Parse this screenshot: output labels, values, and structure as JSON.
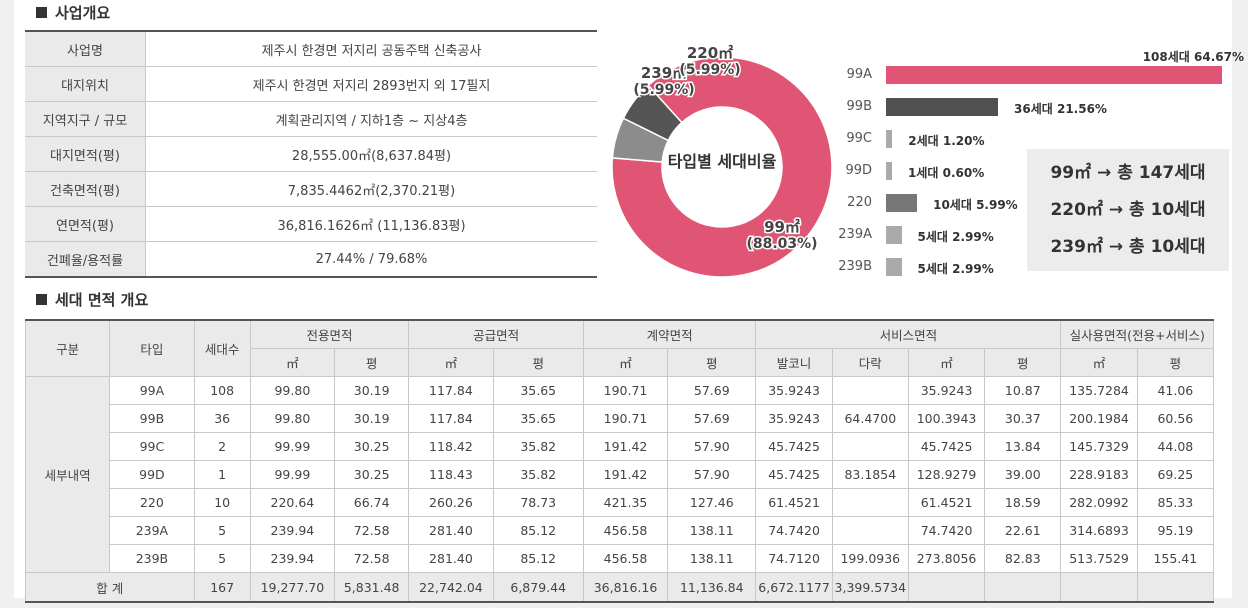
{
  "section1_title": "사업개요",
  "section2_title": "세대 면적 개요",
  "overview": [
    {
      "label": "사업명",
      "value": "제주시 한경면 저지리 공동주택 신축공사"
    },
    {
      "label": "대지위치",
      "value": "제주시 한경면 저지리 2893번지 외 17필지"
    },
    {
      "label": "지역지구 / 규모",
      "value": "계획관리지역 / 지하1층 ~ 지상4층"
    },
    {
      "label": "대지면적(평)",
      "value": "28,555.00㎡(8,637.84평)"
    },
    {
      "label": "건축면적(평)",
      "value": "7,835.4462㎡(2,370.21평)"
    },
    {
      "label": "연면적(평)",
      "value": "36,816.1626㎡ (11,136.83평)"
    },
    {
      "label": "건폐율/용적률",
      "value": "27.44% / 79.68%"
    }
  ],
  "donut": {
    "center_label": "타입별 세대비율",
    "slices": [
      {
        "label": "99㎡",
        "pct_label": "(88.03%)",
        "value": 88.03,
        "color": "#e05573"
      },
      {
        "label": "239㎡",
        "pct_label": "(5.99%)",
        "value": 5.99,
        "color": "#8c8c8c"
      },
      {
        "label": "220㎡",
        "pct_label": "(5.99%)",
        "value": 5.99,
        "color": "#555555"
      }
    ]
  },
  "bar_chart": {
    "items": [
      {
        "label": "99A",
        "value": 64.67,
        "text": "108세대 64.67%",
        "color": "#e05573"
      },
      {
        "label": "99B",
        "value": 21.56,
        "text": "36세대 21.56%",
        "color": "#505050"
      },
      {
        "label": "99C",
        "value": 1.2,
        "text": "2세대 1.20%",
        "color": "#aaaaaa"
      },
      {
        "label": "99D",
        "value": 0.6,
        "text": "1세대 0.60%",
        "color": "#aaaaaa"
      },
      {
        "label": "220",
        "value": 5.99,
        "text": "10세대 5.99%",
        "color": "#777777"
      },
      {
        "label": "239A",
        "value": 2.99,
        "text": "5세대 2.99%",
        "color": "#aaaaaa"
      },
      {
        "label": "239B",
        "value": 2.99,
        "text": "5세대 2.99%",
        "color": "#aaaaaa"
      }
    ]
  },
  "summary": [
    "99㎡ → 총 147세대",
    "220㎡ → 총 10세대",
    "239㎡ → 총 10세대"
  ],
  "units_table": {
    "h_gubun": "구분",
    "h_type": "타입",
    "h_count": "세대수",
    "h_exclusive": "전용면적",
    "h_supply": "공급면적",
    "h_contract": "계약면적",
    "h_service": "서비스면적",
    "h_actual": "실사용면적(전용+서비스)",
    "sub_m2": "㎡",
    "sub_py": "평",
    "sub_balcony": "발코니",
    "sub_attic": "다락",
    "group_label": "세부내역",
    "rows": [
      [
        "99A",
        "108",
        "99.80",
        "30.19",
        "117.84",
        "35.65",
        "190.71",
        "57.69",
        "35.9243",
        "",
        "35.9243",
        "10.87",
        "135.7284",
        "41.06"
      ],
      [
        "99B",
        "36",
        "99.80",
        "30.19",
        "117.84",
        "35.65",
        "190.71",
        "57.69",
        "35.9243",
        "64.4700",
        "100.3943",
        "30.37",
        "200.1984",
        "60.56"
      ],
      [
        "99C",
        "2",
        "99.99",
        "30.25",
        "118.42",
        "35.82",
        "191.42",
        "57.90",
        "45.7425",
        "",
        "45.7425",
        "13.84",
        "145.7329",
        "44.08"
      ],
      [
        "99D",
        "1",
        "99.99",
        "30.25",
        "118.43",
        "35.82",
        "191.42",
        "57.90",
        "45.7425",
        "83.1854",
        "128.9279",
        "39.00",
        "228.9183",
        "69.25"
      ],
      [
        "220",
        "10",
        "220.64",
        "66.74",
        "260.26",
        "78.73",
        "421.35",
        "127.46",
        "61.4521",
        "",
        "61.4521",
        "18.59",
        "282.0992",
        "85.33"
      ],
      [
        "239A",
        "5",
        "239.94",
        "72.58",
        "281.40",
        "85.12",
        "456.58",
        "138.11",
        "74.7420",
        "",
        "74.7420",
        "22.61",
        "314.6893",
        "95.19"
      ],
      [
        "239B",
        "5",
        "239.94",
        "72.58",
        "281.40",
        "85.12",
        "456.58",
        "138.11",
        "74.7120",
        "199.0936",
        "273.8056",
        "82.83",
        "513.7529",
        "155.41"
      ]
    ],
    "total_label": "합 계",
    "total": [
      "167",
      "19,277.70",
      "5,831.48",
      "22,742.04",
      "6,879.44",
      "36,816.16",
      "11,136.84",
      "6,672.1177",
      "3,399.5734",
      "",
      "",
      "",
      ""
    ]
  }
}
